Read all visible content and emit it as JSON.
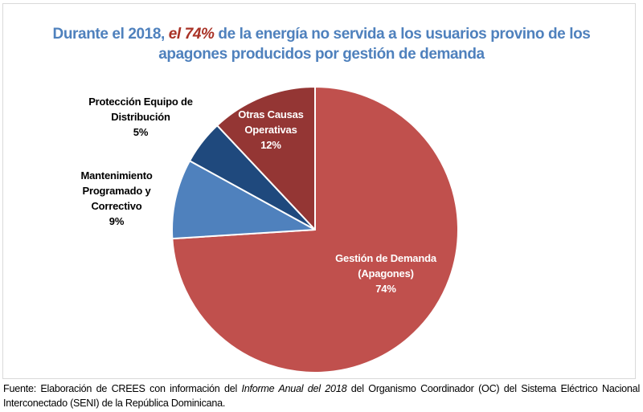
{
  "title": {
    "prefix": "Durante el 2018, ",
    "highlight": "el 74%",
    "rest_line1": " de la energía no servida a los usuarios provino de los",
    "line2": "apagones producidos por gestión de demanda"
  },
  "chart_data": {
    "type": "pie",
    "title": "Durante el 2018, el 74% de la energía no servida a los usuarios provino de los apagones producidos por gestión de demanda",
    "start_angle": "12 o'clock",
    "direction": "clockwise",
    "slices": [
      {
        "name": "Gestión de Demanda (Apagones)",
        "label_lines": [
          "Gestión de Demanda",
          "(Apagones)"
        ],
        "value": 74,
        "value_label": "74%",
        "color": "#c0504d",
        "label_color": "#ffffff"
      },
      {
        "name": "Mantenimiento Programado y Correctivo",
        "label_lines": [
          "Mantenimiento",
          "Programado y",
          "Correctivo"
        ],
        "value": 9,
        "value_label": "9%",
        "color": "#4f81bd",
        "label_color": "#000000"
      },
      {
        "name": "Protección Equipo de Distribución",
        "label_lines": [
          "Protección Equipo de",
          "Distribución"
        ],
        "value": 5,
        "value_label": "5%",
        "color": "#1f497d",
        "label_color": "#000000"
      },
      {
        "name": "Otras Causas Operativas",
        "label_lines": [
          "Otras Causas",
          "Operativas"
        ],
        "value": 12,
        "value_label": "12%",
        "color": "#943634",
        "label_color": "#ffffff"
      }
    ]
  },
  "source": {
    "prefix": "Fuente: Elaboración de CREES con información del ",
    "italic": "Informe Anual del 2018",
    "suffix": " del Organismo Coordinador (OC) del Sistema Eléctrico Nacional Interconectado (SENI) de la República Dominicana."
  }
}
